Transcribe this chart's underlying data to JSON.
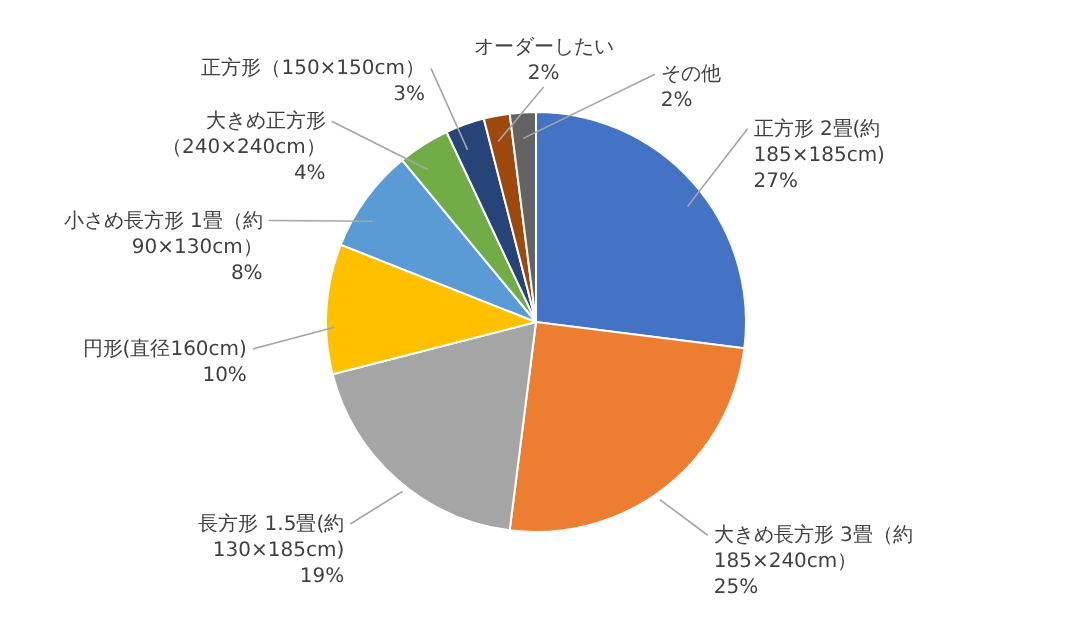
{
  "chart_data": {
    "type": "pie",
    "categories": [
      "正方形 2畳(約185×185cm)",
      "大きめ長方形 3畳（約185×240cm）",
      "長方形 1.5畳(約130×185cm)",
      "円形(直径160cm)",
      "小さめ長方形 1畳（約90×130cm）",
      "大きめ正方形（240×240cm）",
      "正方形（150×150cm）",
      "オーダーしたい",
      "その他"
    ],
    "values": [
      27,
      25,
      19,
      10,
      8,
      4,
      3,
      2,
      2
    ],
    "colors": [
      "#4472c4",
      "#ed7d31",
      "#a5a5a5",
      "#ffc000",
      "#5b9bd5",
      "#70ad47",
      "#264478",
      "#9e480e",
      "#636363"
    ],
    "value_labels": [
      "27%",
      "25%",
      "19%",
      "10%",
      "8%",
      "4%",
      "3%",
      "2%",
      "2%"
    ]
  }
}
